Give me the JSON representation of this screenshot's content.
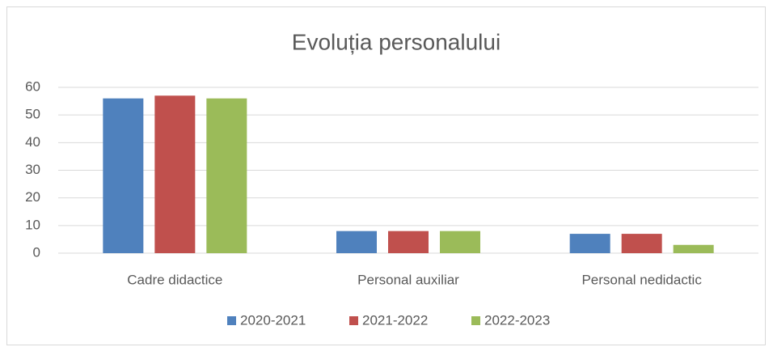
{
  "chart_data": {
    "type": "bar",
    "title": "Evoluția personalului",
    "categories": [
      "Cadre didactice",
      "Personal auxiliar",
      "Personal nedidactic"
    ],
    "series": [
      {
        "name": "2020-2021",
        "color": "#4f81bd",
        "values": [
          56,
          8,
          7
        ]
      },
      {
        "name": "2021-2022",
        "color": "#c0504d",
        "values": [
          57,
          8,
          7
        ]
      },
      {
        "name": "2022-2023",
        "color": "#9bbb59",
        "values": [
          56,
          8,
          3
        ]
      }
    ],
    "ylim": [
      0,
      60
    ],
    "yticks": [
      0,
      10,
      20,
      30,
      40,
      50,
      60
    ],
    "grid": true,
    "legend": "bottom"
  }
}
